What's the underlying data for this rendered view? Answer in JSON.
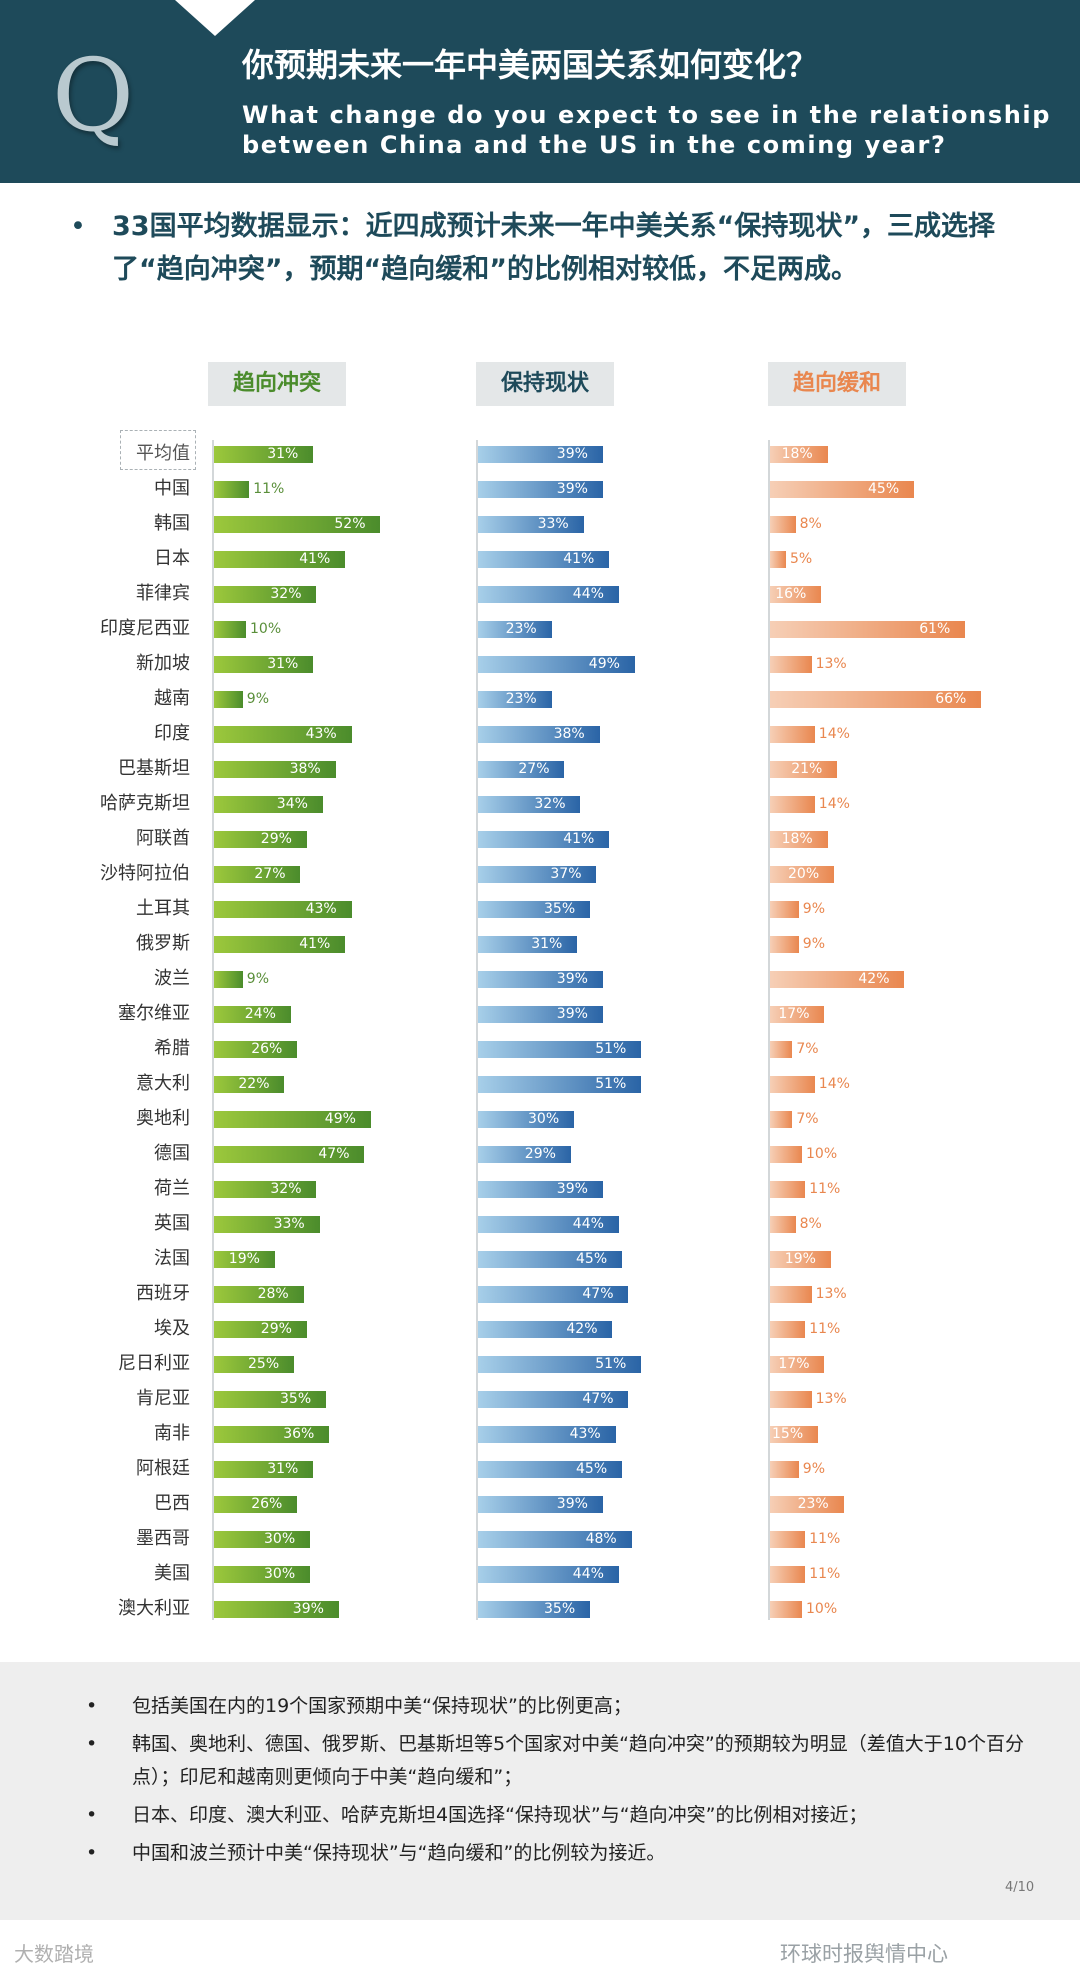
{
  "header": {
    "q_letter": "Q",
    "title_cn": "你预期未来一年中美两国关系如何变化？",
    "title_en": "What change do you expect to see in the relationship between China and the US in the coming year?"
  },
  "summary": {
    "bullet": "•",
    "text": "33国平均数据显示：近四成预计未来一年中美关系“保持现状”，三成选择了“趋向冲突”，预期“趋向缓和”的比例相对较低，不足两成。"
  },
  "colors": {
    "header_bg": "#1e4a5a",
    "conflict": "#4b8c2c",
    "status_quo": "#2a64a6",
    "easing": "#e9874f"
  },
  "chart_data": {
    "type": "bar",
    "orientation": "horizontal",
    "value_suffix": "%",
    "categories": [
      "平均值",
      "中国",
      "韩国",
      "日本",
      "菲律宾",
      "印度尼西亚",
      "新加坡",
      "越南",
      "印度",
      "巴基斯坦",
      "哈萨克斯坦",
      "阿联酋",
      "沙特阿拉伯",
      "土耳其",
      "俄罗斯",
      "波兰",
      "塞尔维亚",
      "希腊",
      "意大利",
      "奥地利",
      "德国",
      "荷兰",
      "英国",
      "法国",
      "西班牙",
      "埃及",
      "尼日利亚",
      "肯尼亚",
      "南非",
      "阿根廷",
      "巴西",
      "墨西哥",
      "美国",
      "澳大利亚"
    ],
    "series": [
      {
        "name": "趋向冲突",
        "color": "#4b8c2c",
        "values": [
          31,
          11,
          52,
          41,
          32,
          10,
          31,
          9,
          43,
          38,
          34,
          29,
          27,
          43,
          41,
          9,
          24,
          26,
          22,
          49,
          47,
          32,
          33,
          19,
          28,
          29,
          25,
          35,
          36,
          31,
          26,
          30,
          30,
          39
        ]
      },
      {
        "name": "保持现状",
        "color": "#2a64a6",
        "values": [
          39,
          39,
          33,
          41,
          44,
          23,
          49,
          23,
          38,
          27,
          32,
          41,
          37,
          35,
          31,
          39,
          39,
          51,
          51,
          30,
          29,
          39,
          44,
          45,
          47,
          42,
          51,
          47,
          43,
          45,
          39,
          48,
          44,
          35
        ]
      },
      {
        "name": "趋向缓和",
        "color": "#e9874f",
        "values": [
          18,
          45,
          8,
          5,
          16,
          61,
          13,
          66,
          14,
          21,
          14,
          18,
          20,
          9,
          9,
          42,
          17,
          7,
          14,
          7,
          10,
          11,
          8,
          19,
          13,
          11,
          17,
          13,
          15,
          9,
          23,
          11,
          11,
          10
        ]
      }
    ]
  },
  "notes": [
    "包括美国在内的19个国家预期中美“保持现状”的比例更高；",
    "韩国、奥地利、德国、俄罗斯、巴基斯坦等5个国家对中美“趋向冲突”的预期较为明显（差值大于10个百分点）；印尼和越南则更倾向于中美“趋向缓和”；",
    "日本、印度、澳大利亚、哈萨克斯坦4国选择“保持现状”与“趋向冲突”的比例相对接近；",
    "中国和波兰预计中美“保持现状”与“趋向缓和”的比例较为接近。"
  ],
  "note_bullet": "•",
  "footer": {
    "page": "4/10",
    "watermark_right": "环球时报舆情中心",
    "watermark_left": "大数踏境"
  }
}
